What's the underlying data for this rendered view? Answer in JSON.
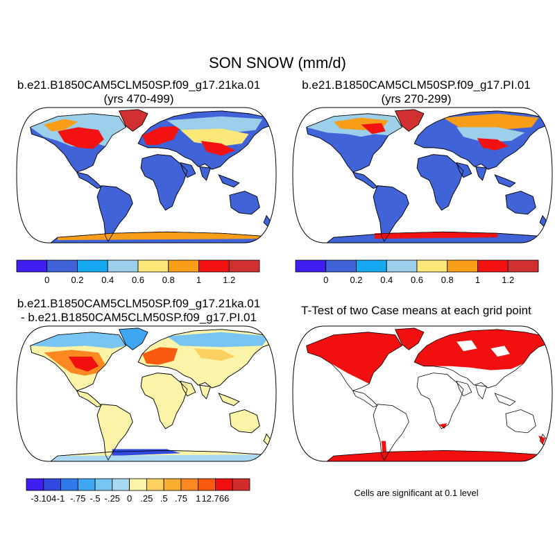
{
  "title": "SON SNOW (mm/d)",
  "panels": [
    {
      "id": "case1",
      "title_line1": "b.e21.B1850CAM5CLM50SP.f09_g17.21ka.01",
      "title_line2": "(yrs 470-499)"
    },
    {
      "id": "case2",
      "title_line1": "b.e21.B1850CAM5CLM50SP.f09_g17.PI.01",
      "title_line2": "(yrs 270-299)"
    },
    {
      "id": "difference",
      "title_line1": "b.e21.B1850CAM5CLM50SP.f09_g17.21ka.01",
      "title_line2": "- b.e21.B1850CAM5CLM50SP.f09_g17.PI.01"
    },
    {
      "id": "ttest",
      "title_line1": "T-Test of two Case means at each grid point",
      "title_line2": ""
    }
  ],
  "colorbars": {
    "mean": {
      "colors": [
        "#3f1ff0",
        "#4064d8",
        "#16a8f0",
        "#9ccfea",
        "#fbe878",
        "#f89d17",
        "#f21212",
        "#d03030"
      ],
      "labels": [
        "0",
        "0.2",
        "0.4",
        "0.6",
        "0.8",
        "1",
        "1.2"
      ]
    },
    "diff": {
      "colors": [
        "#3f1ff0",
        "#3048e0",
        "#2f7ae8",
        "#3fa6f2",
        "#78c4f2",
        "#aad8f2",
        "#fbf4a8",
        "#fbd060",
        "#f9b030",
        "#fb8820",
        "#fa5a10",
        "#f01010",
        "#d02c2c"
      ],
      "labels": [
        "-3.104",
        "-1",
        "-.75",
        "-.5",
        "-.25",
        "0",
        ".25",
        ".5",
        ".75",
        "1",
        "12.766"
      ]
    }
  },
  "significance_note": "Cells are significant at 0.1 level"
}
